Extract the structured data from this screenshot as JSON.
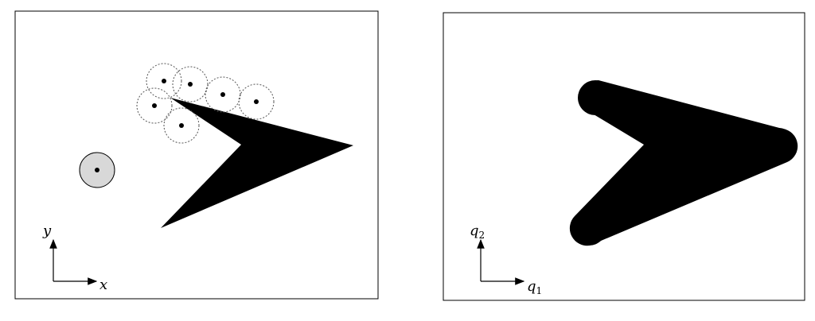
{
  "left_panel": {
    "axis_y_label": "y",
    "axis_x_label": "x"
  },
  "right_panel": {
    "axis_y_label": "q",
    "axis_y_subscript": "2",
    "axis_x_label": "q",
    "axis_x_subscript": "1"
  },
  "colors": {
    "obstacle": "#000000",
    "robot_fill": "#d8d8d8",
    "frame": "#000000",
    "dashed": "#555555"
  }
}
